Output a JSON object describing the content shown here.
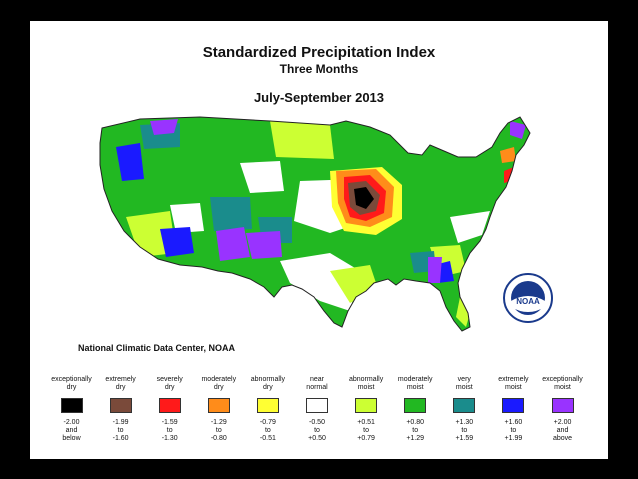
{
  "title": "Standardized Precipitation Index",
  "subtitle": "Three Months",
  "period": "July-September 2013",
  "credit": "National Climatic Data Center, NOAA",
  "logo": {
    "text": "NOAA",
    "icon": "noaa-logo"
  },
  "legend": [
    {
      "label": "exceptionally\ndry",
      "range": "-2.00\nand\nbelow",
      "color": "#000000"
    },
    {
      "label": "extremely\ndry",
      "range": "-1.99\nto\n-1.60",
      "color": "#7a4a3a"
    },
    {
      "label": "severely\ndry",
      "range": "-1.59\nto\n-1.30",
      "color": "#ff1a1a"
    },
    {
      "label": "moderately\ndry",
      "range": "-1.29\nto\n-0.80",
      "color": "#ff8c1a"
    },
    {
      "label": "abnormally\ndry",
      "range": "-0.79\nto\n-0.51",
      "color": "#ffff33"
    },
    {
      "label": "near\nnormal",
      "range": "-0.50\nto\n+0.50",
      "color": "#ffffff"
    },
    {
      "label": "abnormally\nmoist",
      "range": "+0.51\nto\n+0.79",
      "color": "#ccff33"
    },
    {
      "label": "moderately\nmoist",
      "range": "+0.80\nto\n+1.29",
      "color": "#22b822"
    },
    {
      "label": "very\nmoist",
      "range": "+1.30\nto\n+1.59",
      "color": "#1a8c8c"
    },
    {
      "label": "extremely\nmoist",
      "range": "+1.60\nto\n+1.99",
      "color": "#1a1aff"
    },
    {
      "label": "exceptionally\nmoist",
      "range": "+2.00\nand\nabove",
      "color": "#9933ff"
    }
  ]
}
